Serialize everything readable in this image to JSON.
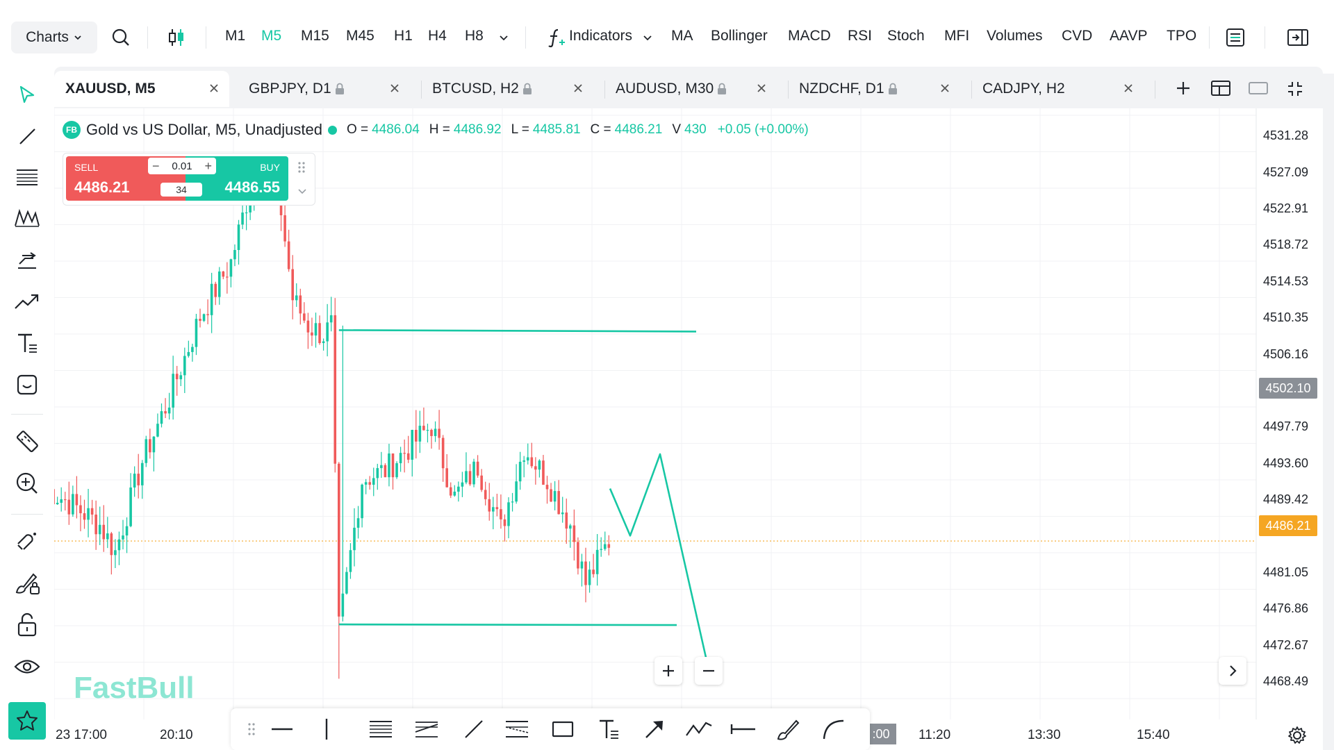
{
  "toolbar": {
    "charts_label": "Charts",
    "timeframes": [
      "M1",
      "M5",
      "M15",
      "M45",
      "H1",
      "H4",
      "H8"
    ],
    "active_timeframe": "M5",
    "indicators_label": "Indicators",
    "indicators": [
      "MA",
      "Bollinger",
      "MACD",
      "RSI",
      "Stoch",
      "MFI",
      "Volumes",
      "CVD",
      "AAVP",
      "TPO"
    ]
  },
  "tabs": [
    {
      "label": "XAUUSD, M5",
      "locked": false,
      "active": true
    },
    {
      "label": "GBPJPY, D1",
      "locked": true,
      "active": false
    },
    {
      "label": "BTCUSD, H2",
      "locked": true,
      "active": false
    },
    {
      "label": "AUDUSD, M30",
      "locked": true,
      "active": false
    },
    {
      "label": "NZDCHF, D1",
      "locked": true,
      "active": false
    },
    {
      "label": "CADJPY, H2",
      "locked": false,
      "active": false
    }
  ],
  "legend": {
    "badge": "FB",
    "title": "Gold vs US Dollar, M5, Unadjusted",
    "o_label": "O =",
    "o": "4486.04",
    "h_label": "H =",
    "h": "4486.92",
    "l_label": "L =",
    "l": "4485.81",
    "c_label": "C =",
    "c": "4486.21",
    "v_label": "V",
    "v": "430",
    "change": "+0.05 (+0.00%)"
  },
  "trade": {
    "sell_label": "SELL",
    "sell_price": "4486.21",
    "buy_label": "BUY",
    "buy_price": "4486.55",
    "lot": "0.01",
    "minus": "−",
    "plus": "+",
    "spread": "34"
  },
  "price_axis": [
    "4531.28",
    "4527.09",
    "4522.91",
    "4518.72",
    "4514.53",
    "4510.35",
    "4506.16",
    "4497.79",
    "4493.60",
    "4489.42",
    "4481.05",
    "4476.86",
    "4472.67",
    "4468.49"
  ],
  "price_tags": {
    "crosshair": "4502.10",
    "last": "4486.21"
  },
  "time_axis": [
    "23 17:00",
    "20:10",
    "11:20",
    "13:30",
    "15:40"
  ],
  "time_tag": ":00",
  "watermark": "FastBull",
  "colors": {
    "up": "#17c7a4",
    "down": "#f05a5a",
    "accent": "#17c7a4",
    "last_price": "#f5a623",
    "crosshair_tag": "#8a8f96"
  },
  "chart_data": {
    "type": "candlestick",
    "symbol": "XAUUSD",
    "timeframe": "M5",
    "ylim": [
      4466.5,
      4534.0
    ],
    "last_price": 4486.21,
    "horizontal_lines": [
      4509.5,
      4477.0
    ],
    "projection_path": [
      {
        "x": 0,
        "y": 4492.0
      },
      {
        "x": 1,
        "y": 4486.8
      },
      {
        "x": 2,
        "y": 4495.8
      },
      {
        "x": 3,
        "y": 4472.0
      }
    ],
    "anchors": [
      {
        "i": 0,
        "price": 4492.0
      },
      {
        "i": 6,
        "price": 4490.5
      },
      {
        "i": 14,
        "price": 4488.0
      },
      {
        "i": 18,
        "price": 4485.0
      },
      {
        "i": 25,
        "price": 4495.0
      },
      {
        "i": 32,
        "price": 4502.0
      },
      {
        "i": 40,
        "price": 4511.0
      },
      {
        "i": 48,
        "price": 4517.0
      },
      {
        "i": 54,
        "price": 4527.0
      },
      {
        "i": 60,
        "price": 4526.0
      },
      {
        "i": 64,
        "price": 4513.0
      },
      {
        "i": 68,
        "price": 4510.0
      },
      {
        "i": 72,
        "price": 4509.0
      },
      {
        "i": 74,
        "price": 4510.0
      },
      {
        "i": 76,
        "price": 4476.5
      },
      {
        "i": 82,
        "price": 4493.0
      },
      {
        "i": 88,
        "price": 4494.0
      },
      {
        "i": 94,
        "price": 4496.5
      },
      {
        "i": 100,
        "price": 4499.0
      },
      {
        "i": 106,
        "price": 4491.0
      },
      {
        "i": 112,
        "price": 4494.5
      },
      {
        "i": 118,
        "price": 4487.5
      },
      {
        "i": 124,
        "price": 4496.5
      },
      {
        "i": 130,
        "price": 4493.0
      },
      {
        "i": 136,
        "price": 4488.0
      },
      {
        "i": 140,
        "price": 4481.5
      },
      {
        "i": 146,
        "price": 4486.2
      }
    ]
  }
}
